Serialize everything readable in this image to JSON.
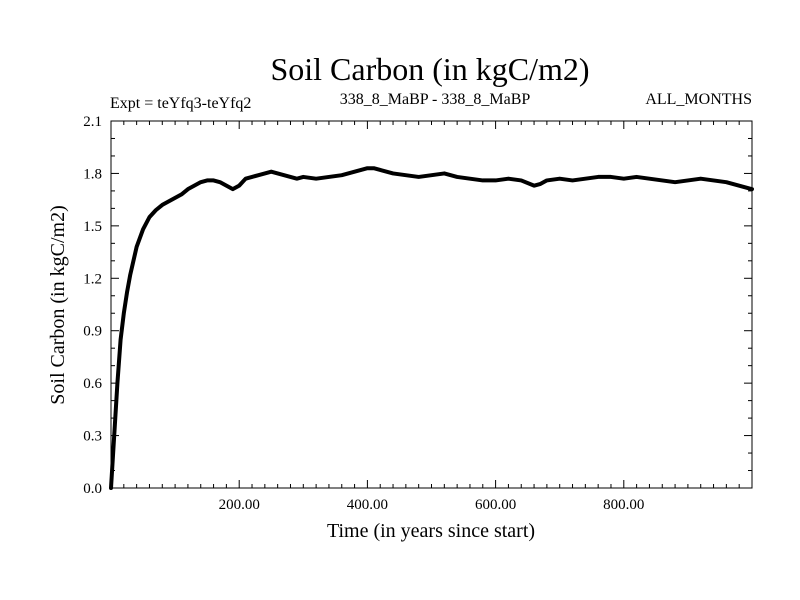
{
  "chart_data": {
    "type": "line",
    "title": "Soil Carbon (in kgC/m2)",
    "subtitle_left": "Expt = teYfq3-teYfq2",
    "subtitle_center": "338_8_MaBP - 338_8_MaBP",
    "subtitle_right": "ALL_MONTHS",
    "xlabel": "Time (in years since start)",
    "ylabel": "Soil Carbon (in kgC/m2)",
    "xlim": [
      0,
      1000
    ],
    "ylim": [
      0,
      2.1
    ],
    "x_ticks": [
      200,
      400,
      600,
      800
    ],
    "x_tick_labels": [
      "200.00",
      "400.00",
      "600.00",
      "800.00"
    ],
    "y_ticks": [
      0,
      0.3,
      0.6,
      0.9,
      1.2,
      1.5,
      1.8,
      2.1
    ],
    "y_tick_labels": [
      "0.0",
      "0.3",
      "0.6",
      "0.9",
      "1.2",
      "1.5",
      "1.8",
      "2.1"
    ],
    "grid": false,
    "series": [
      {
        "name": "Soil Carbon",
        "color": "#000000",
        "x": [
          0,
          5,
          10,
          15,
          20,
          25,
          30,
          40,
          50,
          60,
          70,
          80,
          90,
          100,
          110,
          120,
          130,
          140,
          150,
          160,
          170,
          180,
          190,
          200,
          210,
          220,
          230,
          240,
          250,
          260,
          270,
          280,
          290,
          300,
          320,
          340,
          360,
          380,
          400,
          410,
          420,
          440,
          460,
          480,
          500,
          520,
          540,
          560,
          580,
          600,
          620,
          640,
          660,
          670,
          680,
          700,
          720,
          740,
          760,
          780,
          800,
          820,
          840,
          860,
          880,
          900,
          920,
          940,
          960,
          980,
          1000
        ],
        "values": [
          0.0,
          0.3,
          0.6,
          0.85,
          1.0,
          1.12,
          1.22,
          1.38,
          1.48,
          1.55,
          1.59,
          1.62,
          1.64,
          1.66,
          1.68,
          1.71,
          1.73,
          1.75,
          1.76,
          1.76,
          1.75,
          1.73,
          1.71,
          1.73,
          1.77,
          1.78,
          1.79,
          1.8,
          1.81,
          1.8,
          1.79,
          1.78,
          1.77,
          1.78,
          1.77,
          1.78,
          1.79,
          1.81,
          1.83,
          1.83,
          1.82,
          1.8,
          1.79,
          1.78,
          1.79,
          1.8,
          1.78,
          1.77,
          1.76,
          1.76,
          1.77,
          1.76,
          1.73,
          1.74,
          1.76,
          1.77,
          1.76,
          1.77,
          1.78,
          1.78,
          1.77,
          1.78,
          1.77,
          1.76,
          1.75,
          1.76,
          1.77,
          1.76,
          1.75,
          1.73,
          1.71
        ]
      }
    ]
  }
}
